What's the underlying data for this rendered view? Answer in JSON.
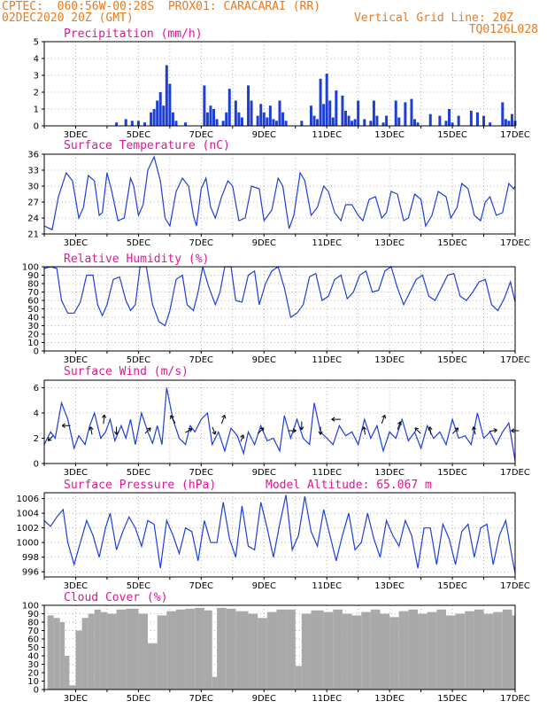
{
  "header": {
    "line1": "CPTEC:  060:56W-00:28S  PROX01: CARACARAI (RR)",
    "line2_left": "02DEC2020 20Z (GMT)",
    "line2_right": "Vertical Grid Line: 20Z",
    "line3_right": "TQ0126L028"
  },
  "colors": {
    "header": "#e87a1e",
    "title": "#e0159a",
    "line": "#1e3fd6",
    "bar": "#1e3fd6",
    "cloud": "#a9a9a9"
  },
  "chart_data": [
    {
      "id": "precip",
      "type": "bar",
      "title": "Precipitation (mm/h)",
      "ylim": [
        0,
        5
      ],
      "yticks": [
        0,
        1,
        2,
        3,
        4,
        5
      ],
      "xticks": [
        "3DEC",
        "5DEC",
        "7DEC",
        "9DEC",
        "11DEC",
        "13DEC",
        "15DEC",
        "17DEC"
      ],
      "x": [
        4.3,
        4.6,
        4.8,
        5.0,
        5.2,
        5.4,
        5.5,
        5.6,
        5.7,
        5.8,
        5.9,
        6.0,
        6.1,
        6.2,
        6.5,
        7.1,
        7.2,
        7.3,
        7.4,
        7.5,
        7.7,
        7.8,
        7.9,
        8.1,
        8.2,
        8.3,
        8.5,
        8.6,
        8.8,
        8.9,
        9.0,
        9.1,
        9.2,
        9.3,
        9.4,
        9.5,
        9.6,
        9.7,
        10.2,
        10.5,
        10.6,
        10.7,
        10.8,
        10.9,
        11.0,
        11.1,
        11.2,
        11.3,
        11.5,
        11.6,
        11.7,
        11.8,
        11.9,
        12.0,
        12.2,
        12.4,
        12.5,
        12.6,
        12.8,
        12.9,
        13.2,
        13.3,
        13.5,
        13.7,
        13.8,
        13.9,
        14.3,
        14.6,
        14.8,
        14.9,
        15.0,
        15.2,
        15.6,
        15.8,
        16.0,
        16.2,
        16.6,
        16.7,
        16.8,
        16.9,
        17.0
      ],
      "values": [
        0.2,
        0.4,
        0.3,
        0.3,
        0.2,
        0.8,
        1.0,
        1.5,
        2.0,
        1.2,
        3.6,
        2.5,
        0.8,
        0.3,
        0.2,
        2.4,
        0.8,
        1.2,
        1.0,
        0.4,
        0.3,
        0.8,
        2.2,
        1.5,
        0.8,
        0.5,
        2.4,
        1.5,
        0.6,
        1.3,
        0.8,
        0.5,
        1.2,
        0.4,
        0.3,
        1.5,
        0.8,
        0.3,
        0.3,
        1.2,
        0.6,
        0.4,
        2.8,
        1.3,
        3.1,
        1.5,
        0.5,
        2.1,
        1.8,
        0.9,
        0.6,
        0.3,
        0.4,
        1.5,
        0.4,
        0.3,
        1.5,
        0.6,
        0.2,
        0.6,
        1.5,
        0.5,
        1.4,
        1.6,
        0.4,
        0.2,
        0.7,
        0.6,
        0.3,
        1.0,
        0.2,
        0.6,
        0.9,
        0.8,
        0.6,
        0.2,
        1.4,
        0.4,
        0.3,
        0.7,
        0.3
      ]
    },
    {
      "id": "temp",
      "type": "line",
      "title": "Surface Temperature (nC)",
      "ylim": [
        21,
        36
      ],
      "yticks": [
        21,
        24,
        27,
        30,
        33,
        36
      ],
      "xticks": [
        "3DEC",
        "5DEC",
        "7DEC",
        "9DEC",
        "11DEC",
        "13DEC",
        "15DEC",
        "17DEC"
      ],
      "x": [
        2.0,
        2.25,
        2.45,
        2.7,
        2.9,
        3.1,
        3.25,
        3.4,
        3.6,
        3.75,
        3.85,
        4.0,
        4.15,
        4.35,
        4.55,
        4.75,
        4.85,
        5.0,
        5.15,
        5.3,
        5.5,
        5.7,
        5.85,
        6.0,
        6.2,
        6.4,
        6.6,
        6.75,
        6.85,
        7.0,
        7.15,
        7.3,
        7.45,
        7.65,
        7.85,
        8.0,
        8.2,
        8.4,
        8.6,
        8.85,
        9.0,
        9.25,
        9.45,
        9.6,
        9.8,
        9.95,
        10.15,
        10.3,
        10.5,
        10.7,
        10.9,
        11.05,
        11.25,
        11.45,
        11.6,
        11.8,
        12.0,
        12.15,
        12.35,
        12.55,
        12.75,
        12.9,
        13.05,
        13.25,
        13.45,
        13.6,
        13.8,
        14.0,
        14.15,
        14.35,
        14.55,
        14.8,
        14.95,
        15.15,
        15.3,
        15.5,
        15.7,
        15.9,
        16.05,
        16.2,
        16.4,
        16.6,
        16.8,
        16.95,
        17.0
      ],
      "values": [
        22.5,
        21.8,
        28.0,
        32.5,
        31.0,
        24.0,
        26.0,
        32.0,
        31.0,
        24.5,
        25.0,
        32.5,
        29.0,
        23.5,
        24.0,
        31.5,
        30.0,
        24.5,
        26.5,
        33.0,
        35.5,
        31.0,
        24.0,
        22.5,
        29.0,
        31.5,
        30.0,
        24.5,
        22.5,
        29.5,
        31.5,
        26.0,
        24.0,
        28.0,
        31.0,
        30.0,
        23.5,
        24.0,
        30.0,
        29.5,
        23.5,
        25.5,
        31.5,
        30.0,
        22.0,
        24.5,
        32.5,
        31.0,
        24.5,
        26.0,
        30.0,
        29.0,
        25.0,
        23.5,
        26.5,
        26.5,
        24.5,
        23.5,
        27.5,
        28.0,
        24.0,
        25.0,
        29.0,
        28.5,
        23.5,
        24.0,
        28.5,
        27.5,
        22.5,
        24.5,
        29.0,
        28.0,
        24.0,
        26.0,
        30.5,
        29.5,
        24.5,
        23.5,
        27.0,
        28.0,
        24.5,
        25.0,
        30.5,
        29.5,
        30.0
      ]
    },
    {
      "id": "rh",
      "type": "line",
      "title": "Relative Humidity (%)",
      "ylim": [
        0,
        100
      ],
      "yticks": [
        0,
        10,
        20,
        30,
        40,
        50,
        60,
        70,
        80,
        90,
        100
      ],
      "xticks": [
        "3DEC",
        "5DEC",
        "7DEC",
        "9DEC",
        "11DEC",
        "13DEC",
        "15DEC",
        "17DEC"
      ],
      "x": [
        2.0,
        2.2,
        2.4,
        2.55,
        2.75,
        2.95,
        3.15,
        3.35,
        3.55,
        3.7,
        3.85,
        4.0,
        4.2,
        4.4,
        4.6,
        4.75,
        4.9,
        5.05,
        5.25,
        5.45,
        5.65,
        5.85,
        6.0,
        6.2,
        6.4,
        6.55,
        6.75,
        6.9,
        7.05,
        7.25,
        7.45,
        7.6,
        7.75,
        7.95,
        8.1,
        8.3,
        8.5,
        8.7,
        8.85,
        9.05,
        9.25,
        9.45,
        9.65,
        9.85,
        10.05,
        10.25,
        10.45,
        10.65,
        10.85,
        11.05,
        11.25,
        11.45,
        11.65,
        11.85,
        12.05,
        12.25,
        12.45,
        12.65,
        12.85,
        13.05,
        13.25,
        13.45,
        13.65,
        13.85,
        14.05,
        14.25,
        14.45,
        14.65,
        14.85,
        15.05,
        15.25,
        15.45,
        15.65,
        15.85,
        16.05,
        16.25,
        16.45,
        16.65,
        16.85,
        17.0
      ],
      "values": [
        98,
        100,
        98,
        60,
        45,
        45,
        58,
        90,
        90,
        55,
        42,
        55,
        85,
        88,
        60,
        48,
        55,
        100,
        100,
        55,
        35,
        30,
        48,
        85,
        90,
        55,
        48,
        70,
        100,
        75,
        55,
        70,
        100,
        100,
        60,
        58,
        90,
        95,
        55,
        80,
        95,
        100,
        75,
        40,
        45,
        55,
        88,
        92,
        60,
        65,
        85,
        90,
        62,
        70,
        90,
        95,
        70,
        72,
        95,
        100,
        75,
        55,
        70,
        85,
        90,
        65,
        60,
        75,
        90,
        92,
        65,
        60,
        70,
        82,
        85,
        55,
        48,
        62,
        82,
        58
      ]
    },
    {
      "id": "wind",
      "type": "line",
      "title": "Surface Wind (m/s)",
      "ylim": [
        0,
        6.6
      ],
      "yticks": [
        0,
        2,
        4,
        6
      ],
      "xticks": [
        "3DEC",
        "5DEC",
        "7DEC",
        "9DEC",
        "11DEC",
        "13DEC",
        "15DEC",
        "17DEC"
      ],
      "x": [
        2.0,
        2.2,
        2.35,
        2.55,
        2.75,
        2.95,
        3.1,
        3.3,
        3.45,
        3.6,
        3.8,
        3.95,
        4.1,
        4.25,
        4.45,
        4.6,
        4.75,
        4.9,
        5.1,
        5.3,
        5.45,
        5.6,
        5.75,
        5.9,
        6.1,
        6.3,
        6.5,
        6.65,
        6.8,
        7.0,
        7.2,
        7.35,
        7.55,
        7.75,
        7.95,
        8.15,
        8.35,
        8.5,
        8.7,
        8.9,
        9.1,
        9.3,
        9.5,
        9.65,
        9.85,
        10.05,
        10.25,
        10.45,
        10.6,
        10.8,
        11.0,
        11.2,
        11.4,
        11.6,
        11.8,
        12.0,
        12.2,
        12.4,
        12.6,
        12.8,
        13.0,
        13.2,
        13.4,
        13.6,
        13.8,
        14.0,
        14.2,
        14.4,
        14.6,
        14.8,
        15.0,
        15.2,
        15.4,
        15.6,
        15.8,
        16.0,
        16.2,
        16.4,
        16.6,
        16.8,
        17.0
      ],
      "values": [
        1.5,
        2.5,
        2.0,
        4.8,
        3.5,
        1.2,
        2.2,
        1.5,
        3.0,
        4.0,
        2.0,
        2.5,
        3.5,
        1.8,
        3.0,
        2.0,
        3.5,
        1.5,
        4.0,
        2.5,
        1.6,
        3.0,
        1.5,
        6.0,
        3.5,
        2.0,
        1.5,
        3.0,
        2.5,
        3.5,
        4.0,
        1.5,
        2.5,
        1.0,
        2.8,
        2.2,
        0.8,
        2.5,
        1.5,
        3.0,
        1.8,
        2.0,
        1.0,
        3.8,
        2.0,
        3.5,
        2.0,
        1.5,
        4.8,
        2.5,
        2.0,
        1.5,
        3.0,
        2.2,
        2.5,
        1.5,
        3.5,
        2.0,
        3.0,
        1.0,
        2.5,
        2.0,
        3.5,
        1.8,
        2.5,
        1.2,
        3.0,
        2.0,
        2.5,
        1.5,
        3.5,
        2.0,
        2.2,
        1.5,
        4.0,
        2.0,
        2.5,
        1.5,
        2.5,
        3.2,
        0.2
      ],
      "vectors": [
        {
          "x": 2.2,
          "speed": 2.0,
          "dir": 225
        },
        {
          "x": 2.7,
          "speed": 3.0,
          "dir": 270
        },
        {
          "x": 3.5,
          "speed": 2.6,
          "dir": 350
        },
        {
          "x": 3.9,
          "speed": 3.5,
          "dir": 5
        },
        {
          "x": 4.3,
          "speed": 2.6,
          "dir": 180
        },
        {
          "x": 5.3,
          "speed": 2.6,
          "dir": 45
        },
        {
          "x": 6.1,
          "speed": 3.5,
          "dir": 330
        },
        {
          "x": 6.6,
          "speed": 2.6,
          "dir": 60
        },
        {
          "x": 7.4,
          "speed": 2.6,
          "dir": 160
        },
        {
          "x": 7.7,
          "speed": 3.5,
          "dir": 20
        },
        {
          "x": 8.3,
          "speed": 2.0,
          "dir": 20
        },
        {
          "x": 8.9,
          "speed": 2.6,
          "dir": 45
        },
        {
          "x": 9.9,
          "speed": 2.6,
          "dir": 90
        },
        {
          "x": 10.2,
          "speed": 3.0,
          "dir": 180
        },
        {
          "x": 10.8,
          "speed": 2.6,
          "dir": 180
        },
        {
          "x": 11.3,
          "speed": 3.5,
          "dir": 270
        },
        {
          "x": 12.2,
          "speed": 2.6,
          "dir": 350
        },
        {
          "x": 12.8,
          "speed": 3.5,
          "dir": 20
        },
        {
          "x": 13.3,
          "speed": 3.0,
          "dir": 20
        },
        {
          "x": 13.9,
          "speed": 2.6,
          "dir": 315
        },
        {
          "x": 14.3,
          "speed": 2.6,
          "dir": 350
        },
        {
          "x": 15.1,
          "speed": 2.6,
          "dir": 45
        },
        {
          "x": 15.7,
          "speed": 2.6,
          "dir": 345
        },
        {
          "x": 16.3,
          "speed": 2.6,
          "dir": 80
        },
        {
          "x": 17.0,
          "speed": 2.6,
          "dir": 270
        }
      ]
    },
    {
      "id": "pres",
      "type": "line",
      "title": "Surface Pressure (hPa)",
      "annotation": "Model Altitude: 65.067 m",
      "ylim": [
        995.3,
        1006.8
      ],
      "yticks": [
        996,
        998,
        1000,
        1002,
        1004,
        1006
      ],
      "xticks": [
        "3DEC",
        "5DEC",
        "7DEC",
        "9DEC",
        "11DEC",
        "13DEC",
        "15DEC",
        "17DEC"
      ],
      "x": [
        2.0,
        2.2,
        2.4,
        2.6,
        2.75,
        2.95,
        3.15,
        3.35,
        3.55,
        3.75,
        3.95,
        4.1,
        4.3,
        4.5,
        4.7,
        4.9,
        5.1,
        5.3,
        5.5,
        5.7,
        5.9,
        6.1,
        6.3,
        6.5,
        6.7,
        6.9,
        7.1,
        7.3,
        7.5,
        7.7,
        7.9,
        8.1,
        8.3,
        8.5,
        8.7,
        8.9,
        9.1,
        9.3,
        9.5,
        9.7,
        9.9,
        10.1,
        10.3,
        10.5,
        10.7,
        10.9,
        11.1,
        11.3,
        11.5,
        11.7,
        11.9,
        12.1,
        12.3,
        12.5,
        12.7,
        12.9,
        13.1,
        13.3,
        13.5,
        13.7,
        13.9,
        14.1,
        14.3,
        14.5,
        14.7,
        14.9,
        15.1,
        15.3,
        15.5,
        15.7,
        15.9,
        16.1,
        16.3,
        16.5,
        16.7,
        16.9,
        17.0
      ],
      "values": [
        1003,
        1002.2,
        1003.5,
        1004.5,
        1000,
        997,
        1000,
        1003,
        1001,
        998,
        1002,
        1004,
        999,
        1001.5,
        1003.5,
        1002,
        999.5,
        1003,
        1002.5,
        996.5,
        1003,
        1001,
        998.5,
        1002,
        1001.5,
        997.5,
        1003,
        1000,
        1000,
        1005.5,
        1000.5,
        998,
        1005,
        999.5,
        999,
        1005.5,
        1002,
        998,
        1002.5,
        1006.5,
        999,
        1001,
        1006.3,
        1001.5,
        999.5,
        1004.5,
        1001,
        997.5,
        1001,
        1004,
        999,
        1000,
        1004,
        1000.5,
        998,
        1003,
        1001,
        999.5,
        1003,
        1001,
        996.5,
        1002,
        1002,
        997,
        1002.5,
        1000.5,
        997,
        1001.5,
        1002.5,
        998,
        1002,
        1002.5,
        997,
        1001,
        1003,
        998,
        995.8
      ]
    },
    {
      "id": "cloud",
      "type": "bar",
      "title": "Cloud Cover (%)",
      "ylim": [
        0,
        100
      ],
      "yticks": [
        0,
        10,
        20,
        30,
        40,
        50,
        60,
        70,
        80,
        90,
        100
      ],
      "xticks": [
        "3DEC",
        "5DEC",
        "7DEC",
        "9DEC",
        "11DEC",
        "13DEC",
        "15DEC",
        "17DEC"
      ],
      "x": [
        2.1,
        2.3,
        2.5,
        2.65,
        2.8,
        3.0,
        3.2,
        3.4,
        3.6,
        3.8,
        4.0,
        4.3,
        4.6,
        5.0,
        5.3,
        5.6,
        5.9,
        6.2,
        6.5,
        6.8,
        7.1,
        7.35,
        7.5,
        7.8,
        8.1,
        8.5,
        8.8,
        9.1,
        9.4,
        9.7,
        10.0,
        10.2,
        10.5,
        10.9,
        11.2,
        11.5,
        11.8,
        12.1,
        12.4,
        12.7,
        13.0,
        13.3,
        13.6,
        13.9,
        14.2,
        14.5,
        14.8,
        15.1,
        15.4,
        15.7,
        16.0,
        16.3,
        16.6,
        16.9
      ],
      "values": [
        88,
        85,
        80,
        40,
        5,
        70,
        85,
        90,
        95,
        92,
        90,
        95,
        96,
        90,
        55,
        88,
        93,
        95,
        96,
        97,
        94,
        15,
        97,
        96,
        93,
        90,
        85,
        92,
        95,
        95,
        28,
        90,
        94,
        92,
        95,
        90,
        88,
        92,
        95,
        90,
        86,
        93,
        95,
        90,
        92,
        95,
        88,
        90,
        93,
        95,
        90,
        92,
        95,
        88
      ]
    }
  ]
}
